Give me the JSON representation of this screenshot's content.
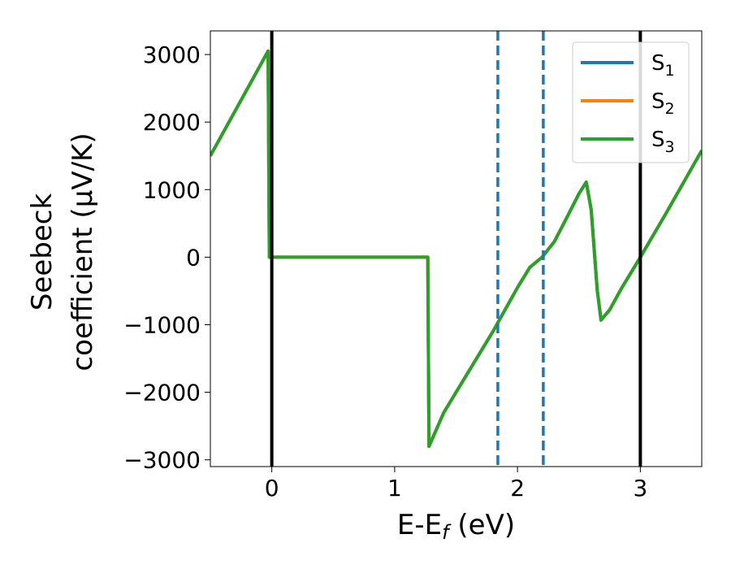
{
  "chart_data": {
    "type": "line",
    "xlabel": "E-E",
    "xlabel_sub": "f",
    "xlabel_unit": " (eV)",
    "ylabel_line1": "Seebeck",
    "ylabel_line2": "coefficient  (μV/K)",
    "xlim": [
      -0.5,
      3.5
    ],
    "ylim": [
      -3100,
      3350
    ],
    "x_ticks": [
      0,
      1,
      2,
      3
    ],
    "x_tick_labels": [
      "0",
      "1",
      "2",
      "3"
    ],
    "y_ticks": [
      -3000,
      -2000,
      -1000,
      0,
      1000,
      2000,
      3000
    ],
    "y_tick_labels": [
      "−3000",
      "−2000",
      "−1000",
      "0",
      "1000",
      "2000",
      "3000"
    ],
    "grid": false,
    "legend_position": "top-right",
    "series": [
      {
        "name": "S",
        "subscript": "1",
        "color": "#1f77b4",
        "x": [
          -0.5,
          -0.03,
          -0.02,
          1.27,
          1.28,
          1.4,
          1.6,
          1.8,
          2.0,
          2.1,
          2.2,
          2.3,
          2.4,
          2.5,
          2.56,
          2.6,
          2.65,
          2.68,
          2.75,
          2.85,
          3.0,
          3.2,
          3.5
        ],
        "values": [
          1500,
          3050,
          0,
          0,
          -2800,
          -2300,
          -1700,
          -1100,
          -450,
          -150,
          0,
          230,
          580,
          940,
          1110,
          700,
          -500,
          -930,
          -780,
          -450,
          0,
          620,
          1580
        ]
      },
      {
        "name": "S",
        "subscript": "2",
        "color": "#ff7f0e",
        "x": [
          -0.5,
          -0.03,
          -0.02,
          1.27,
          1.28,
          1.4,
          1.6,
          1.8,
          2.0,
          2.1,
          2.2,
          2.3,
          2.4,
          2.5,
          2.56,
          2.6,
          2.65,
          2.68,
          2.75,
          2.85,
          3.0,
          3.2,
          3.5
        ],
        "values": [
          1500,
          3050,
          0,
          0,
          -2800,
          -2300,
          -1700,
          -1100,
          -450,
          -150,
          0,
          230,
          580,
          940,
          1110,
          700,
          -500,
          -930,
          -780,
          -450,
          0,
          620,
          1580
        ]
      },
      {
        "name": "S",
        "subscript": "3",
        "color": "#2ca02c",
        "x": [
          -0.5,
          -0.03,
          -0.02,
          1.27,
          1.28,
          1.4,
          1.6,
          1.8,
          2.0,
          2.1,
          2.2,
          2.3,
          2.4,
          2.5,
          2.56,
          2.6,
          2.65,
          2.68,
          2.75,
          2.85,
          3.0,
          3.2,
          3.5
        ],
        "values": [
          1500,
          3050,
          0,
          0,
          -2800,
          -2300,
          -1700,
          -1100,
          -450,
          -150,
          0,
          230,
          580,
          940,
          1110,
          700,
          -500,
          -930,
          -780,
          -450,
          0,
          620,
          1580
        ]
      }
    ],
    "vertical_lines": [
      {
        "x": 0,
        "style": "solid",
        "color": "#000000"
      },
      {
        "x": 3,
        "style": "solid",
        "color": "#000000"
      },
      {
        "x": 1.84,
        "style": "dashed",
        "color": "#1f77b4"
      },
      {
        "x": 2.21,
        "style": "dashed",
        "color": "#1f77b4"
      }
    ]
  }
}
